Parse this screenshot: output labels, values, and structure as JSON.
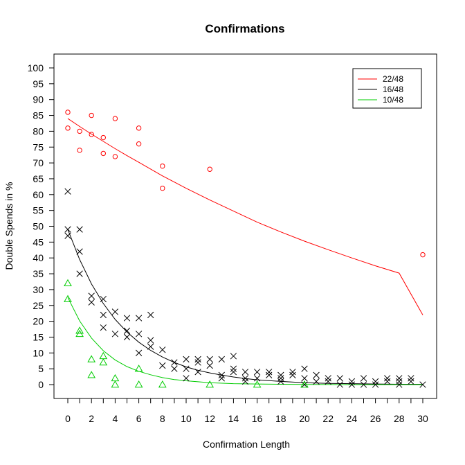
{
  "chart_data": {
    "type": "scatter",
    "title": "Confirmations",
    "xlabel": "Confirmation Length",
    "ylabel": "Double Spends in %",
    "xlim": [
      0,
      30
    ],
    "ylim": [
      0,
      100
    ],
    "x_ticks": [
      0,
      2,
      4,
      6,
      8,
      10,
      12,
      14,
      16,
      18,
      20,
      22,
      24,
      26,
      28,
      30
    ],
    "y_ticks": [
      0,
      5,
      10,
      15,
      20,
      25,
      30,
      35,
      40,
      45,
      50,
      55,
      60,
      65,
      70,
      75,
      80,
      85,
      90,
      95,
      100
    ],
    "grid": false,
    "legend_position": "top-right",
    "series": [
      {
        "name": "22/48",
        "color": "#ff0000",
        "marker": "circle",
        "points": [
          [
            0,
            86
          ],
          [
            0,
            81
          ],
          [
            1,
            80
          ],
          [
            1,
            74
          ],
          [
            2,
            85
          ],
          [
            2,
            79
          ],
          [
            3,
            78
          ],
          [
            3,
            73
          ],
          [
            4,
            84
          ],
          [
            4,
            72
          ],
          [
            6,
            81
          ],
          [
            6,
            76
          ],
          [
            8,
            69
          ],
          [
            8,
            62
          ],
          [
            12,
            68
          ],
          [
            30,
            41
          ]
        ],
        "fit": [
          [
            0,
            84
          ],
          [
            1,
            81.5
          ],
          [
            2,
            79.1
          ],
          [
            3,
            76.8
          ],
          [
            4,
            74.5
          ],
          [
            5,
            72.3
          ],
          [
            6,
            70.2
          ],
          [
            8,
            65.9
          ],
          [
            10,
            62
          ],
          [
            12,
            58.3
          ],
          [
            14,
            54.8
          ],
          [
            16,
            51.3
          ],
          [
            18,
            48.2
          ],
          [
            20,
            45.3
          ],
          [
            22,
            42.6
          ],
          [
            24,
            40
          ],
          [
            26,
            37.5
          ],
          [
            28,
            35.2
          ],
          [
            30,
            22
          ]
        ]
      },
      {
        "name": "16/48",
        "color": "#000000",
        "marker": "x",
        "points": [
          [
            0,
            61
          ],
          [
            0,
            49
          ],
          [
            0,
            47
          ],
          [
            1,
            49
          ],
          [
            1,
            42
          ],
          [
            1,
            35
          ],
          [
            2,
            28
          ],
          [
            2,
            26
          ],
          [
            3,
            27
          ],
          [
            3,
            22
          ],
          [
            3,
            18
          ],
          [
            4,
            23
          ],
          [
            4,
            16
          ],
          [
            5,
            21
          ],
          [
            5,
            17
          ],
          [
            5,
            15
          ],
          [
            6,
            21
          ],
          [
            6,
            16
          ],
          [
            6,
            10
          ],
          [
            7,
            22
          ],
          [
            7,
            14
          ],
          [
            7,
            12
          ],
          [
            8,
            11
          ],
          [
            8,
            6
          ],
          [
            9,
            7
          ],
          [
            9,
            5
          ],
          [
            10,
            8
          ],
          [
            10,
            5
          ],
          [
            10,
            2
          ],
          [
            11,
            8
          ],
          [
            11,
            7
          ],
          [
            11,
            4
          ],
          [
            12,
            8
          ],
          [
            12,
            6
          ],
          [
            13,
            8
          ],
          [
            13,
            3
          ],
          [
            13,
            2
          ],
          [
            14,
            9
          ],
          [
            14,
            5
          ],
          [
            14,
            4
          ],
          [
            15,
            4
          ],
          [
            15,
            2
          ],
          [
            15,
            1
          ],
          [
            16,
            4
          ],
          [
            16,
            2
          ],
          [
            17,
            4
          ],
          [
            17,
            3
          ],
          [
            18,
            3
          ],
          [
            18,
            2
          ],
          [
            18,
            1
          ],
          [
            19,
            4
          ],
          [
            19,
            3
          ],
          [
            20,
            5
          ],
          [
            20,
            2
          ],
          [
            20,
            0
          ],
          [
            21,
            3
          ],
          [
            21,
            1
          ],
          [
            22,
            2
          ],
          [
            22,
            1
          ],
          [
            23,
            2
          ],
          [
            23,
            0
          ],
          [
            24,
            1
          ],
          [
            24,
            0
          ],
          [
            25,
            2
          ],
          [
            25,
            0
          ],
          [
            26,
            1
          ],
          [
            26,
            0
          ],
          [
            27,
            2
          ],
          [
            27,
            1
          ],
          [
            28,
            2
          ],
          [
            28,
            1
          ],
          [
            28,
            0
          ],
          [
            29,
            2
          ],
          [
            29,
            1
          ],
          [
            30,
            0
          ]
        ],
        "fit": [
          [
            0,
            49
          ],
          [
            1,
            39.5
          ],
          [
            2,
            31.8
          ],
          [
            3,
            25.6
          ],
          [
            4,
            20.6
          ],
          [
            5,
            16.6
          ],
          [
            6,
            13.4
          ],
          [
            7,
            10.8
          ],
          [
            8,
            8.7
          ],
          [
            9,
            7
          ],
          [
            10,
            5.6
          ],
          [
            11,
            4.5
          ],
          [
            12,
            3.7
          ],
          [
            13,
            3
          ],
          [
            14,
            2.4
          ],
          [
            15,
            1.9
          ],
          [
            16,
            1.5
          ],
          [
            18,
            1
          ],
          [
            20,
            0.6
          ],
          [
            22,
            0.4
          ],
          [
            24,
            0.3
          ],
          [
            26,
            0.2
          ],
          [
            28,
            0.1
          ],
          [
            30,
            0.1
          ]
        ]
      },
      {
        "name": "10/48",
        "color": "#00cc00",
        "marker": "triangle",
        "points": [
          [
            0,
            32
          ],
          [
            0,
            27
          ],
          [
            1,
            17
          ],
          [
            1,
            16
          ],
          [
            2,
            8
          ],
          [
            2,
            3
          ],
          [
            3,
            9
          ],
          [
            3,
            7
          ],
          [
            4,
            2
          ],
          [
            4,
            0
          ],
          [
            6,
            5
          ],
          [
            6,
            0
          ],
          [
            8,
            0
          ],
          [
            12,
            0
          ],
          [
            16,
            0
          ],
          [
            20,
            0
          ]
        ],
        "fit": [
          [
            0,
            27.5
          ],
          [
            1,
            20.1
          ],
          [
            2,
            14.7
          ],
          [
            3,
            10.7
          ],
          [
            4,
            7.8
          ],
          [
            5,
            5.7
          ],
          [
            6,
            4.2
          ],
          [
            7,
            3.1
          ],
          [
            8,
            2.2
          ],
          [
            9,
            1.6
          ],
          [
            10,
            1.2
          ],
          [
            11,
            0.9
          ],
          [
            12,
            0.6
          ],
          [
            14,
            0.3
          ],
          [
            16,
            0.2
          ],
          [
            18,
            0.1
          ],
          [
            20,
            0.05
          ],
          [
            25,
            0
          ],
          [
            30,
            0
          ]
        ]
      }
    ]
  }
}
